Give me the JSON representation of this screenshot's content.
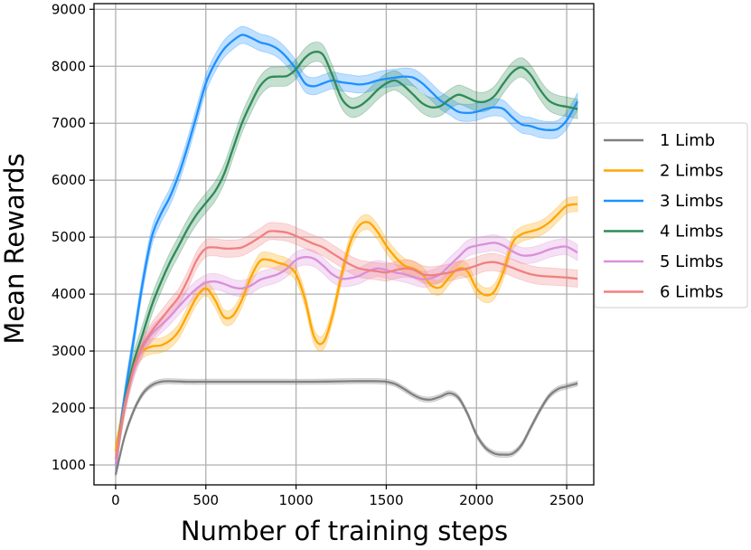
{
  "chart_data": {
    "type": "line",
    "title": "",
    "xlabel": "Number of training steps",
    "ylabel": "Mean Rewards",
    "xlim": [
      -120,
      2650
    ],
    "ylim": [
      650,
      9100
    ],
    "xticks": [
      0,
      500,
      1000,
      1500,
      2000,
      2500
    ],
    "yticks": [
      1000,
      2000,
      3000,
      4000,
      5000,
      6000,
      7000,
      8000,
      9000
    ],
    "grid": true,
    "legend_position": "right, outside plot",
    "series": [
      {
        "name": "1 Limb",
        "color": "#808080",
        "band": 45,
        "x": [
          0,
          50,
          100,
          150,
          200,
          250,
          300,
          400,
          500,
          700,
          900,
          1100,
          1300,
          1450,
          1500,
          1550,
          1600,
          1650,
          1700,
          1750,
          1800,
          1850,
          1900,
          1950,
          2000,
          2050,
          2100,
          2150,
          2200,
          2250,
          2300,
          2350,
          2400,
          2450,
          2500,
          2560
        ],
        "y": [
          830,
          1500,
          1950,
          2250,
          2400,
          2460,
          2470,
          2460,
          2460,
          2460,
          2460,
          2460,
          2470,
          2470,
          2460,
          2420,
          2330,
          2230,
          2160,
          2150,
          2200,
          2260,
          2180,
          1900,
          1530,
          1300,
          1200,
          1180,
          1200,
          1350,
          1650,
          1950,
          2200,
          2330,
          2380,
          2430
        ]
      },
      {
        "name": "2 Limbs",
        "color": "#ffa500",
        "band": 130,
        "x": [
          0,
          50,
          100,
          150,
          200,
          250,
          300,
          350,
          400,
          450,
          500,
          550,
          600,
          650,
          700,
          750,
          800,
          850,
          900,
          950,
          1000,
          1050,
          1100,
          1150,
          1200,
          1250,
          1300,
          1350,
          1400,
          1450,
          1500,
          1550,
          1600,
          1650,
          1700,
          1750,
          1800,
          1850,
          1900,
          1950,
          2000,
          2050,
          2100,
          2150,
          2200,
          2250,
          2300,
          2350,
          2400,
          2450,
          2500,
          2560
        ],
        "y": [
          1250,
          2100,
          2750,
          3000,
          3080,
          3100,
          3180,
          3350,
          3650,
          3950,
          4100,
          3900,
          3600,
          3620,
          3900,
          4300,
          4580,
          4600,
          4550,
          4500,
          4350,
          3900,
          3250,
          3150,
          3600,
          4300,
          4900,
          5200,
          5260,
          5100,
          4850,
          4650,
          4500,
          4450,
          4350,
          4150,
          4120,
          4300,
          4450,
          4400,
          4100,
          3980,
          4050,
          4400,
          4900,
          5050,
          5100,
          5150,
          5250,
          5400,
          5550,
          5580
        ]
      },
      {
        "name": "3 Limbs",
        "color": "#1e90ff",
        "band": 150,
        "x": [
          0,
          50,
          100,
          150,
          200,
          250,
          300,
          350,
          400,
          450,
          500,
          550,
          600,
          650,
          700,
          750,
          800,
          850,
          900,
          950,
          1000,
          1050,
          1100,
          1150,
          1200,
          1250,
          1300,
          1350,
          1400,
          1450,
          1500,
          1550,
          1600,
          1650,
          1700,
          1750,
          1800,
          1850,
          1900,
          1950,
          2000,
          2050,
          2100,
          2150,
          2200,
          2250,
          2300,
          2350,
          2400,
          2450,
          2500,
          2560
        ],
        "y": [
          1000,
          2200,
          3200,
          4200,
          5000,
          5400,
          5700,
          6100,
          6600,
          7150,
          7700,
          8050,
          8300,
          8450,
          8550,
          8500,
          8420,
          8380,
          8300,
          8150,
          7950,
          7700,
          7650,
          7700,
          7750,
          7720,
          7700,
          7680,
          7700,
          7750,
          7780,
          7800,
          7820,
          7800,
          7700,
          7550,
          7400,
          7300,
          7200,
          7180,
          7200,
          7250,
          7280,
          7250,
          7100,
          6980,
          6950,
          6900,
          6880,
          6900,
          7050,
          7380
        ]
      },
      {
        "name": "4 Limbs",
        "color": "#2e8b57",
        "band": 170,
        "x": [
          0,
          50,
          100,
          150,
          200,
          250,
          300,
          350,
          400,
          450,
          500,
          550,
          600,
          650,
          700,
          750,
          800,
          850,
          900,
          950,
          1000,
          1050,
          1100,
          1150,
          1200,
          1250,
          1300,
          1350,
          1400,
          1450,
          1500,
          1550,
          1600,
          1650,
          1700,
          1750,
          1800,
          1850,
          1900,
          1950,
          2000,
          2050,
          2100,
          2150,
          2200,
          2250,
          2300,
          2350,
          2400,
          2450,
          2500,
          2560
        ],
        "y": [
          1000,
          2100,
          2800,
          3300,
          3800,
          4200,
          4550,
          4850,
          5150,
          5400,
          5600,
          5800,
          6100,
          6550,
          7000,
          7350,
          7650,
          7800,
          7820,
          7830,
          7950,
          8150,
          8250,
          8200,
          7850,
          7450,
          7280,
          7300,
          7420,
          7580,
          7700,
          7750,
          7650,
          7500,
          7350,
          7280,
          7300,
          7420,
          7500,
          7450,
          7380,
          7380,
          7480,
          7700,
          7900,
          7980,
          7850,
          7600,
          7400,
          7320,
          7290,
          7250
        ]
      },
      {
        "name": "5 Limbs",
        "color": "#da8fda",
        "band": 140,
        "x": [
          0,
          50,
          100,
          150,
          200,
          250,
          300,
          350,
          400,
          450,
          500,
          550,
          600,
          650,
          700,
          750,
          800,
          850,
          900,
          950,
          1000,
          1050,
          1100,
          1150,
          1200,
          1250,
          1300,
          1350,
          1400,
          1450,
          1500,
          1550,
          1600,
          1650,
          1700,
          1750,
          1800,
          1850,
          1900,
          1950,
          2000,
          2050,
          2100,
          2150,
          2200,
          2250,
          2300,
          2350,
          2400,
          2450,
          2500,
          2560
        ],
        "y": [
          1000,
          2050,
          2650,
          3050,
          3300,
          3450,
          3600,
          3780,
          3950,
          4100,
          4200,
          4220,
          4180,
          4120,
          4100,
          4150,
          4250,
          4300,
          4350,
          4450,
          4600,
          4650,
          4620,
          4500,
          4350,
          4270,
          4280,
          4320,
          4400,
          4450,
          4420,
          4380,
          4350,
          4300,
          4260,
          4280,
          4350,
          4500,
          4650,
          4800,
          4850,
          4880,
          4900,
          4850,
          4750,
          4680,
          4680,
          4720,
          4780,
          4820,
          4830,
          4730
        ]
      },
      {
        "name": "6 Limbs",
        "color": "#f08080",
        "band": 150,
        "x": [
          0,
          50,
          100,
          150,
          200,
          250,
          300,
          350,
          400,
          450,
          500,
          550,
          600,
          650,
          700,
          750,
          800,
          850,
          900,
          950,
          1000,
          1050,
          1100,
          1150,
          1200,
          1250,
          1300,
          1350,
          1400,
          1450,
          1500,
          1550,
          1600,
          1650,
          1700,
          1750,
          1800,
          1850,
          1900,
          1950,
          2000,
          2050,
          2100,
          2150,
          2200,
          2250,
          2300,
          2350,
          2400,
          2450,
          2500,
          2560
        ],
        "y": [
          1100,
          2000,
          2700,
          3100,
          3350,
          3550,
          3750,
          3950,
          4250,
          4600,
          4800,
          4820,
          4800,
          4800,
          4820,
          4900,
          5000,
          5100,
          5100,
          5080,
          5020,
          4950,
          4880,
          4820,
          4720,
          4620,
          4520,
          4450,
          4420,
          4400,
          4380,
          4420,
          4450,
          4430,
          4350,
          4330,
          4350,
          4380,
          4420,
          4450,
          4500,
          4550,
          4560,
          4520,
          4460,
          4400,
          4350,
          4320,
          4310,
          4300,
          4290,
          4270
        ]
      }
    ]
  }
}
